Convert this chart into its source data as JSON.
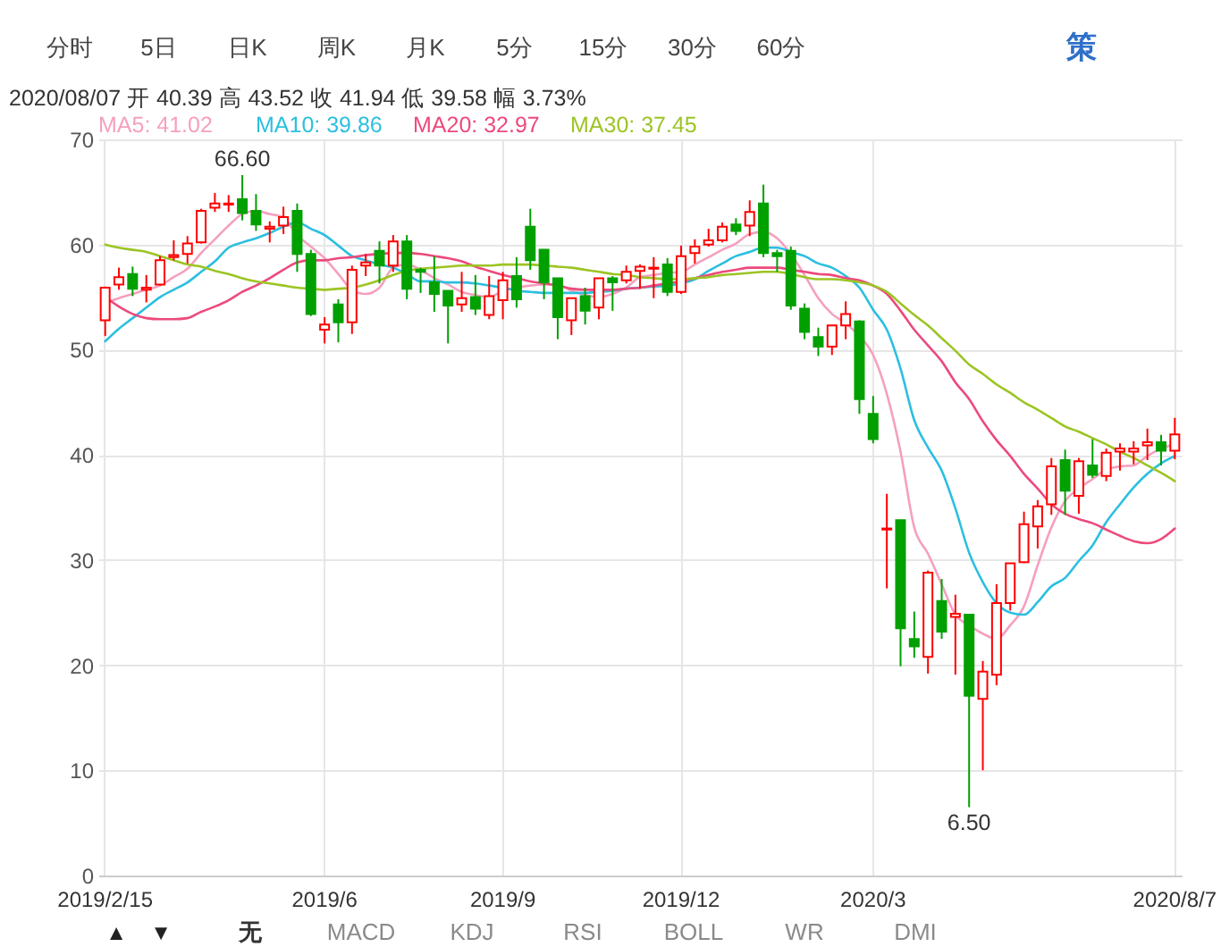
{
  "chart_data": {
    "type": "candlestick",
    "title": "2020/08/07 开 40.39 高 43.52 收 41.94 低 39.58 幅 3.73%",
    "categories": [
      "2019/2/15",
      null,
      null,
      null,
      null,
      null,
      null,
      null,
      null,
      null,
      null,
      null,
      null,
      null,
      null,
      null,
      "2019/6",
      null,
      null,
      null,
      null,
      null,
      null,
      null,
      null,
      null,
      null,
      null,
      null,
      "2019/9",
      null,
      null,
      null,
      null,
      null,
      null,
      null,
      null,
      null,
      null,
      null,
      null,
      "2019/12",
      null,
      null,
      null,
      null,
      null,
      null,
      null,
      null,
      null,
      null,
      null,
      null,
      null,
      "2020/3",
      null,
      null,
      null,
      null,
      null,
      null,
      null,
      null,
      null,
      null,
      null,
      null,
      null,
      null,
      null,
      null,
      null,
      null,
      null,
      null,
      null,
      "2020/8/7"
    ],
    "ohlc": [
      [
        52.8,
        56.0,
        51.3,
        55.9
      ],
      [
        56.2,
        57.8,
        55.7,
        56.9
      ],
      [
        57.2,
        57.9,
        55.1,
        55.8
      ],
      [
        55.7,
        57.1,
        54.5,
        55.9
      ],
      [
        56.2,
        58.9,
        56.1,
        58.5
      ],
      [
        58.8,
        60.4,
        58.5,
        59.0
      ],
      [
        59.1,
        60.8,
        58.2,
        60.1
      ],
      [
        60.2,
        63.4,
        60.1,
        63.2
      ],
      [
        63.5,
        64.9,
        63.1,
        63.9
      ],
      [
        63.8,
        64.7,
        63.1,
        63.9
      ],
      [
        64.3,
        66.6,
        62.3,
        63.0
      ],
      [
        63.2,
        64.8,
        61.3,
        61.9
      ],
      [
        61.5,
        62.2,
        60.2,
        61.7
      ],
      [
        61.8,
        63.6,
        61.0,
        62.6
      ],
      [
        63.2,
        63.9,
        57.4,
        59.1
      ],
      [
        59.1,
        59.5,
        53.2,
        53.4
      ],
      [
        51.9,
        53.1,
        50.6,
        52.4
      ],
      [
        54.3,
        54.8,
        50.7,
        52.6
      ],
      [
        52.6,
        58.0,
        51.5,
        57.6
      ],
      [
        58.0,
        59.1,
        57.0,
        58.3
      ],
      [
        59.4,
        60.3,
        56.3,
        58.0
      ],
      [
        58.0,
        60.9,
        57.4,
        60.3
      ],
      [
        60.3,
        60.9,
        54.8,
        55.8
      ],
      [
        57.6,
        57.8,
        55.4,
        57.4
      ],
      [
        56.4,
        58.9,
        53.6,
        55.3
      ],
      [
        55.6,
        55.6,
        50.6,
        54.2
      ],
      [
        54.3,
        57.4,
        53.6,
        54.9
      ],
      [
        55.0,
        57.1,
        53.3,
        53.9
      ],
      [
        53.3,
        57.0,
        52.9,
        55.1
      ],
      [
        54.7,
        57.4,
        52.9,
        56.6
      ],
      [
        57.0,
        58.8,
        54.0,
        54.8
      ],
      [
        61.7,
        63.4,
        57.6,
        58.5
      ],
      [
        59.5,
        59.5,
        54.8,
        56.4
      ],
      [
        56.8,
        56.8,
        51.0,
        53.1
      ],
      [
        52.8,
        54.9,
        51.4,
        54.9
      ],
      [
        55.1,
        55.9,
        52.4,
        53.7
      ],
      [
        54.0,
        56.8,
        52.9,
        56.8
      ],
      [
        56.8,
        57.0,
        53.7,
        56.4
      ],
      [
        56.6,
        58.0,
        56.3,
        57.4
      ],
      [
        57.5,
        58.1,
        55.8,
        57.9
      ],
      [
        57.7,
        58.8,
        54.9,
        57.8
      ],
      [
        58.1,
        58.7,
        55.1,
        55.5
      ],
      [
        55.5,
        59.9,
        55.3,
        58.9
      ],
      [
        59.2,
        60.5,
        58.2,
        59.8
      ],
      [
        60.0,
        61.5,
        59.8,
        60.4
      ],
      [
        60.4,
        62.1,
        60.2,
        61.7
      ],
      [
        61.9,
        62.5,
        60.9,
        61.3
      ],
      [
        61.8,
        64.2,
        60.8,
        63.1
      ],
      [
        63.9,
        65.7,
        58.8,
        59.2
      ],
      [
        59.2,
        59.5,
        57.4,
        58.9
      ],
      [
        59.4,
        59.8,
        53.8,
        54.2
      ],
      [
        53.9,
        54.4,
        51.0,
        51.7
      ],
      [
        51.2,
        52.1,
        49.4,
        50.3
      ],
      [
        50.3,
        52.3,
        49.5,
        52.3
      ],
      [
        52.3,
        54.6,
        51.0,
        53.4
      ],
      [
        52.7,
        52.8,
        43.9,
        45.3
      ],
      [
        43.9,
        45.6,
        41.1,
        41.5
      ],
      [
        32.9,
        36.3,
        27.3,
        33.0
      ],
      [
        33.8,
        33.8,
        19.9,
        23.5
      ],
      [
        22.5,
        25.1,
        20.7,
        21.8
      ],
      [
        20.8,
        29.0,
        19.2,
        28.8
      ],
      [
        26.1,
        28.2,
        22.5,
        23.2
      ],
      [
        24.6,
        26.7,
        19.1,
        24.9
      ],
      [
        24.8,
        24.8,
        6.5,
        17.1
      ],
      [
        16.8,
        20.4,
        10.0,
        19.4
      ],
      [
        19.1,
        27.7,
        18.1,
        25.9
      ],
      [
        25.9,
        29.7,
        25.2,
        29.7
      ],
      [
        29.8,
        34.6,
        29.7,
        33.4
      ],
      [
        33.2,
        35.7,
        31.1,
        35.1
      ],
      [
        35.3,
        39.7,
        34.3,
        38.9
      ],
      [
        39.5,
        40.5,
        34.3,
        36.6
      ],
      [
        36.1,
        39.7,
        34.4,
        39.4
      ],
      [
        39.0,
        41.5,
        37.8,
        38.1
      ],
      [
        38.0,
        40.6,
        37.5,
        40.2
      ],
      [
        40.3,
        41.1,
        38.5,
        40.6
      ],
      [
        40.3,
        41.3,
        39.1,
        40.6
      ],
      [
        40.9,
        42.5,
        39.5,
        41.2
      ],
      [
        41.2,
        41.9,
        39.0,
        40.4
      ],
      [
        40.39,
        43.52,
        39.58,
        41.94
      ]
    ],
    "colors": [
      "#ff0000",
      "#ff0000",
      "#00a000",
      "#ff0000",
      "#ff0000",
      "#ff0000",
      "#ff0000",
      "#ff0000",
      "#ff0000",
      "#ff0000",
      "#00a000",
      "#00a000",
      "#ff0000",
      "#ff0000",
      "#00a000",
      "#00a000",
      "#ff0000",
      "#00a000",
      "#ff0000",
      "#ff0000",
      "#00a000",
      "#ff0000",
      "#00a000",
      "#00a000",
      "#00a000",
      "#00a000",
      "#ff0000",
      "#00a000",
      "#ff0000",
      "#ff0000",
      "#00a000",
      "#00a000",
      "#00a000",
      "#00a000",
      "#ff0000",
      "#00a000",
      "#ff0000",
      "#00a000",
      "#ff0000",
      "#ff0000",
      "#ff0000",
      "#00a000",
      "#ff0000",
      "#ff0000",
      "#ff0000",
      "#ff0000",
      "#00a000",
      "#ff0000",
      "#00a000",
      "#00a000",
      "#00a000",
      "#00a000",
      "#00a000",
      "#ff0000",
      "#ff0000",
      "#00a000",
      "#00a000",
      "#ff0000",
      "#00a000",
      "#00a000",
      "#ff0000",
      "#00a000",
      "#ff0000",
      "#00a000",
      "#ff0000",
      "#ff0000",
      "#ff0000",
      "#ff0000",
      "#ff0000",
      "#ff0000",
      "#00a000",
      "#ff0000",
      "#00a000",
      "#ff0000",
      "#ff0000",
      "#ff0000",
      "#ff0000",
      "#00a000",
      "#ff0000"
    ],
    "series": [
      {
        "name": "MA5: 41.02",
        "color": "#f5a0bf",
        "type": "line",
        "values": [
          54.4,
          54.9,
          55.3,
          55.7,
          56.1,
          56.9,
          57.7,
          59.2,
          60.5,
          61.8,
          62.9,
          63.2,
          62.9,
          62.6,
          60.9,
          59.8,
          58.7,
          57.2,
          55.7,
          55.3,
          55.9,
          57.8,
          58.1,
          57.6,
          56.8,
          56.2,
          55.5,
          55.2,
          55.0,
          55.6,
          55.9,
          56.1,
          56.2,
          56.2,
          55.6,
          55.2,
          55.0,
          55.3,
          55.9,
          56.9,
          57.1,
          57.3,
          57.4,
          58.1,
          58.8,
          59.5,
          60.1,
          61.0,
          61.2,
          60.6,
          59.1,
          57.1,
          54.9,
          53.4,
          52.5,
          51.3,
          49.5,
          45.8,
          40.3,
          33.1,
          30.6,
          27.7,
          24.8,
          23.8,
          23.0,
          22.5,
          23.8,
          25.6,
          29.5,
          33.1,
          35.6,
          36.8,
          37.7,
          38.6,
          38.9,
          39.0,
          39.9,
          40.6,
          41.0
        ]
      },
      {
        "name": "MA10: 39.86",
        "color": "#2bbfe0",
        "type": "line",
        "values": [
          50.8,
          52.0,
          53.0,
          54.0,
          55.0,
          55.7,
          56.4,
          57.4,
          58.4,
          59.7,
          60.2,
          60.6,
          61.1,
          61.7,
          62.1,
          61.5,
          60.9,
          59.9,
          58.9,
          58.5,
          58.1,
          57.8,
          57.2,
          56.5,
          56.5,
          56.4,
          56.4,
          56.3,
          56.1,
          55.9,
          55.6,
          55.5,
          55.4,
          55.4,
          55.4,
          55.4,
          55.5,
          55.6,
          55.8,
          55.9,
          56.0,
          56.1,
          56.3,
          56.7,
          57.5,
          58.2,
          58.9,
          59.3,
          59.7,
          59.7,
          59.3,
          58.9,
          58.2,
          57.8,
          57.0,
          55.9,
          53.8,
          51.9,
          48.2,
          43.3,
          40.7,
          38.5,
          34.9,
          30.7,
          27.9,
          25.9,
          25.0,
          24.8,
          26.0,
          27.5,
          28.3,
          29.9,
          31.4,
          33.6,
          35.3,
          36.9,
          38.2,
          39.2,
          39.9
        ]
      },
      {
        "name": "MA20: 32.97",
        "color": "#ec4a7c",
        "type": "line",
        "values": [
          55.0,
          54.1,
          53.4,
          53.0,
          52.9,
          52.9,
          53.0,
          53.6,
          54.1,
          54.7,
          55.5,
          56.1,
          56.8,
          57.6,
          58.3,
          58.5,
          58.5,
          58.7,
          58.8,
          59.0,
          59.1,
          59.2,
          59.2,
          59.1,
          58.9,
          58.7,
          58.4,
          57.9,
          57.5,
          57.1,
          56.8,
          56.5,
          56.3,
          56.1,
          55.8,
          55.7,
          55.7,
          55.7,
          55.8,
          55.9,
          56.1,
          56.3,
          56.5,
          56.8,
          57.1,
          57.4,
          57.6,
          57.8,
          57.8,
          57.8,
          57.6,
          57.4,
          57.2,
          57.1,
          56.8,
          56.6,
          56.1,
          55.3,
          53.7,
          51.9,
          50.4,
          48.9,
          46.9,
          45.3,
          43.2,
          41.4,
          39.9,
          38.2,
          36.8,
          35.3,
          34.4,
          33.9,
          33.5,
          32.9,
          32.3,
          31.8,
          31.6,
          32.0,
          33.0
        ]
      },
      {
        "name": "MA30: 37.45",
        "color": "#9cc424",
        "type": "line",
        "values": [
          60.0,
          59.7,
          59.5,
          59.3,
          58.9,
          58.5,
          58.1,
          57.9,
          57.5,
          57.2,
          56.8,
          56.5,
          56.3,
          56.1,
          55.9,
          55.8,
          55.7,
          55.8,
          55.9,
          56.2,
          56.6,
          57.1,
          57.5,
          57.7,
          57.8,
          57.9,
          58.0,
          58.0,
          58.0,
          58.1,
          58.1,
          58.1,
          58.0,
          57.9,
          57.8,
          57.6,
          57.4,
          57.2,
          57.1,
          56.9,
          56.8,
          56.7,
          56.7,
          56.8,
          56.9,
          57.1,
          57.2,
          57.3,
          57.4,
          57.4,
          57.2,
          56.9,
          56.7,
          56.7,
          56.6,
          56.4,
          56.1,
          55.5,
          54.4,
          53.3,
          52.3,
          51.1,
          49.9,
          48.6,
          47.7,
          46.7,
          45.9,
          45.0,
          44.3,
          43.5,
          42.7,
          42.2,
          41.6,
          41.0,
          40.3,
          39.7,
          39.0,
          38.3,
          37.5
        ]
      }
    ],
    "ylim": [
      0,
      70
    ],
    "yticks": [
      0,
      10,
      20,
      30,
      40,
      50,
      60,
      70
    ],
    "grid": true,
    "legend": "top left",
    "annotations": [
      "分时 5日 日K 周K 月K 5分 15分 30分 60分",
      "策",
      "▲ ▼",
      "无 MACD KDJ RSI BOLL WR DMI",
      {
        "text": "66.60",
        "y": 66.6
      },
      {
        "text": "6.50",
        "y": 6.5
      }
    ]
  }
}
